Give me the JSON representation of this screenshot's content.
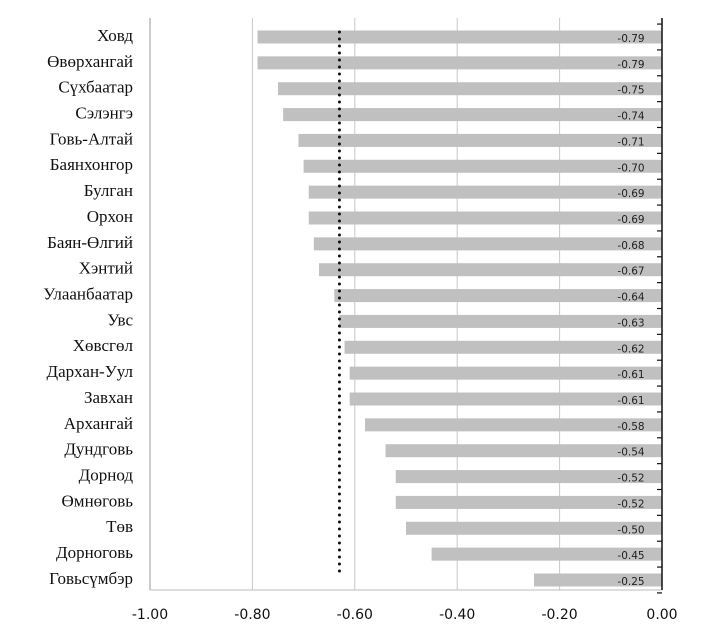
{
  "chart_data": {
    "type": "bar",
    "orientation": "horizontal",
    "categories": [
      "Ховд",
      "Өвөрхангай",
      "Сүхбаатар",
      "Сэлэнгэ",
      "Говь-Алтай",
      "Баянхонгор",
      "Булган",
      "Орхон",
      "Баян-Өлгий",
      "Хэнтий",
      "Улаанбаатар",
      "Увс",
      "Хөвсгөл",
      "Дархан-Уул",
      "Завхан",
      "Архангай",
      "Дундговь",
      "Дорнод",
      "Өмнөговь",
      "Төв",
      "Дорноговь",
      "Говьсүмбэр"
    ],
    "values": [
      -0.79,
      -0.79,
      -0.75,
      -0.74,
      -0.71,
      -0.7,
      -0.69,
      -0.69,
      -0.68,
      -0.67,
      -0.64,
      -0.63,
      -0.62,
      -0.61,
      -0.61,
      -0.58,
      -0.54,
      -0.52,
      -0.52,
      -0.5,
      -0.45,
      -0.25
    ],
    "value_labels": [
      "-0.79",
      "-0.79",
      "-0.75",
      "-0.74",
      "-0.71",
      "-0.70",
      "-0.69",
      "-0.69",
      "-0.68",
      "-0.67",
      "-0.64",
      "-0.63",
      "-0.62",
      "-0.61",
      "-0.61",
      "-0.58",
      "-0.54",
      "-0.52",
      "-0.52",
      "-0.50",
      "-0.45",
      "-0.25"
    ],
    "color": "#c0c0c0",
    "xlim": [
      -1,
      0
    ],
    "xticks": [
      {
        "value": -1,
        "label": "-1.00"
      },
      {
        "value": -0.8,
        "label": "-0.80"
      },
      {
        "value": -0.6,
        "label": "-0.60"
      },
      {
        "value": -0.4,
        "label": "-0.40"
      },
      {
        "value": -0.2,
        "label": "-0.20"
      },
      {
        "value": 0,
        "label": "0.00"
      }
    ],
    "grid": true,
    "reference_line": -0.63
  }
}
